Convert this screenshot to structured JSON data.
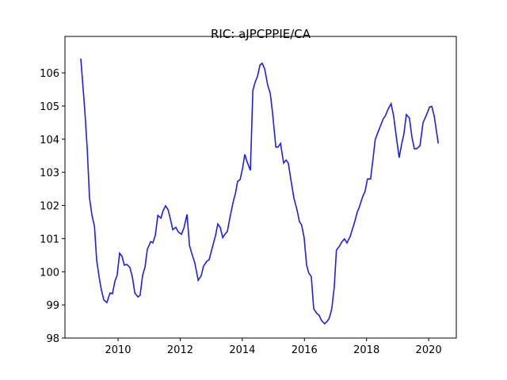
{
  "chart_data": {
    "type": "line",
    "title": "RIC: aJPCPPIE/CA",
    "x": [
      2008.8,
      2008.93,
      2009.01,
      2009.08,
      2009.16,
      2009.24,
      2009.31,
      2009.39,
      2009.46,
      2009.54,
      2009.64,
      2009.74,
      2009.82,
      2009.9,
      2009.97,
      2010.05,
      2010.13,
      2010.2,
      2010.28,
      2010.38,
      2010.46,
      2010.54,
      2010.64,
      2010.71,
      2010.79,
      2010.87,
      2010.94,
      2011.05,
      2011.12,
      2011.2,
      2011.28,
      2011.38,
      2011.45,
      2011.53,
      2011.61,
      2011.68,
      2011.76,
      2011.86,
      2011.94,
      2012.04,
      2012.12,
      2012.22,
      2012.3,
      2012.37,
      2012.47,
      2012.58,
      2012.68,
      2012.75,
      2012.86,
      2012.93,
      2013.04,
      2013.14,
      2013.21,
      2013.29,
      2013.37,
      2013.44,
      2013.52,
      2013.6,
      2013.7,
      2013.78,
      2013.85,
      2013.93,
      2014.01,
      2014.08,
      2014.16,
      2014.26,
      2014.34,
      2014.41,
      2014.49,
      2014.57,
      2014.64,
      2014.72,
      2014.82,
      2014.9,
      2014.97,
      2015.08,
      2015.15,
      2015.23,
      2015.33,
      2015.41,
      2015.48,
      2015.56,
      2015.66,
      2015.76,
      2015.84,
      2015.91,
      2015.99,
      2016.07,
      2016.14,
      2016.22,
      2016.3,
      2016.4,
      2016.47,
      2016.55,
      2016.65,
      2016.73,
      2016.8,
      2016.88,
      2016.96,
      2017.03,
      2017.14,
      2017.21,
      2017.29,
      2017.37,
      2017.47,
      2017.54,
      2017.62,
      2017.7,
      2017.77,
      2017.87,
      2017.95,
      2018.03,
      2018.13,
      2018.21,
      2018.28,
      2018.36,
      2018.44,
      2018.54,
      2018.61,
      2018.69,
      2018.79,
      2018.87,
      2018.97,
      2019.05,
      2019.13,
      2019.2,
      2019.28,
      2019.38,
      2019.46,
      2019.54,
      2019.61,
      2019.72,
      2019.82,
      2019.92,
      2020.03,
      2020.1,
      2020.18,
      2020.31
    ],
    "series": [
      {
        "name": "aJPCPPIE/CA",
        "color": "#1f1fe0",
        "values": [
          106.43,
          104.85,
          103.66,
          102.23,
          101.7,
          101.37,
          100.36,
          99.84,
          99.46,
          99.15,
          99.07,
          99.36,
          99.34,
          99.72,
          99.89,
          100.56,
          100.46,
          100.2,
          100.22,
          100.13,
          99.84,
          99.36,
          99.24,
          99.29,
          99.89,
          100.15,
          100.67,
          100.91,
          100.87,
          101.1,
          101.7,
          101.62,
          101.84,
          101.99,
          101.87,
          101.61,
          101.27,
          101.34,
          101.2,
          101.13,
          101.32,
          101.73,
          100.79,
          100.56,
          100.27,
          99.74,
          99.89,
          100.17,
          100.32,
          100.36,
          100.75,
          101.1,
          101.44,
          101.34,
          101.03,
          101.13,
          101.22,
          101.63,
          102.08,
          102.37,
          102.73,
          102.78,
          103.13,
          103.54,
          103.3,
          103.06,
          105.47,
          105.71,
          105.9,
          106.24,
          106.29,
          106.12,
          105.62,
          105.38,
          104.83,
          103.76,
          103.76,
          103.87,
          103.28,
          103.37,
          103.28,
          102.8,
          102.23,
          101.87,
          101.51,
          101.41,
          101.03,
          100.2,
          99.96,
          99.86,
          98.88,
          98.74,
          98.69,
          98.53,
          98.43,
          98.5,
          98.6,
          98.88,
          99.53,
          100.65,
          100.79,
          100.91,
          100.99,
          100.87,
          101.06,
          101.27,
          101.51,
          101.8,
          101.96,
          102.25,
          102.42,
          102.8,
          102.8,
          103.42,
          103.99,
          104.19,
          104.38,
          104.62,
          104.71,
          104.9,
          105.07,
          104.71,
          103.99,
          103.44,
          103.85,
          104.14,
          104.74,
          104.64,
          104.07,
          103.71,
          103.71,
          103.8,
          104.5,
          104.71,
          104.97,
          104.99,
          104.69,
          103.87
        ]
      }
    ],
    "xlim": [
      2008.29,
      2020.89
    ],
    "ylim": [
      98,
      107.1
    ],
    "xticks": [
      2010,
      2012,
      2014,
      2016,
      2018,
      2020
    ],
    "yticks": [
      98,
      99,
      100,
      101,
      102,
      103,
      104,
      105,
      106
    ]
  }
}
